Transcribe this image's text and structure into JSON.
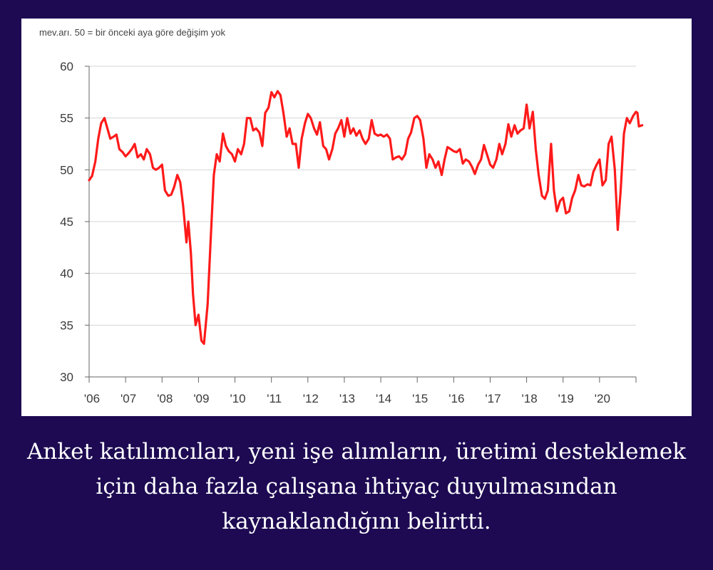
{
  "chart_data": {
    "type": "line",
    "title": "",
    "subtitle": "mev.arı. 50 = bir önceki aya göre değişim yok",
    "xlabel": "",
    "ylabel": "",
    "ylim": [
      30,
      60
    ],
    "yticks": [
      30,
      35,
      40,
      45,
      50,
      55,
      60
    ],
    "xlim": [
      2006.0,
      2021.0
    ],
    "xticks": [
      {
        "label": "'06",
        "x": 2006
      },
      {
        "label": "'07",
        "x": 2007
      },
      {
        "label": "'08",
        "x": 2008
      },
      {
        "label": "'09",
        "x": 2009
      },
      {
        "label": "'10",
        "x": 2010
      },
      {
        "label": "'11",
        "x": 2011
      },
      {
        "label": "'12",
        "x": 2012
      },
      {
        "label": "'13",
        "x": 2013
      },
      {
        "label": "'14",
        "x": 2014
      },
      {
        "label": "'15",
        "x": 2015
      },
      {
        "label": "'16",
        "x": 2016
      },
      {
        "label": "'17",
        "x": 2017
      },
      {
        "label": "'18",
        "x": 2018
      },
      {
        "label": "'19",
        "x": 2019
      },
      {
        "label": "'20",
        "x": 2020
      }
    ],
    "grid": true,
    "color": "#ff1a1a",
    "series": [
      {
        "name": "",
        "points": [
          [
            2006.0,
            49.0
          ],
          [
            2006.08,
            49.4
          ],
          [
            2006.17,
            50.8
          ],
          [
            2006.25,
            53.0
          ],
          [
            2006.33,
            54.5
          ],
          [
            2006.42,
            55.0
          ],
          [
            2006.5,
            54.0
          ],
          [
            2006.58,
            53.0
          ],
          [
            2006.67,
            53.2
          ],
          [
            2006.75,
            53.4
          ],
          [
            2006.83,
            52.0
          ],
          [
            2006.92,
            51.7
          ],
          [
            2007.0,
            51.3
          ],
          [
            2007.08,
            51.6
          ],
          [
            2007.17,
            52.0
          ],
          [
            2007.25,
            52.5
          ],
          [
            2007.33,
            51.2
          ],
          [
            2007.42,
            51.5
          ],
          [
            2007.5,
            51.0
          ],
          [
            2007.58,
            52.0
          ],
          [
            2007.67,
            51.5
          ],
          [
            2007.75,
            50.2
          ],
          [
            2007.83,
            50.0
          ],
          [
            2007.92,
            50.2
          ],
          [
            2008.0,
            50.5
          ],
          [
            2008.08,
            48.0
          ],
          [
            2008.17,
            47.5
          ],
          [
            2008.25,
            47.6
          ],
          [
            2008.33,
            48.3
          ],
          [
            2008.42,
            49.5
          ],
          [
            2008.5,
            48.8
          ],
          [
            2008.58,
            46.5
          ],
          [
            2008.67,
            43.0
          ],
          [
            2008.72,
            45.0
          ],
          [
            2008.79,
            42.0
          ],
          [
            2008.85,
            38.0
          ],
          [
            2008.92,
            35.0
          ],
          [
            2009.0,
            36.0
          ],
          [
            2009.08,
            33.5
          ],
          [
            2009.15,
            33.2
          ],
          [
            2009.25,
            37.0
          ],
          [
            2009.33,
            43.0
          ],
          [
            2009.42,
            49.5
          ],
          [
            2009.5,
            51.5
          ],
          [
            2009.58,
            50.8
          ],
          [
            2009.67,
            53.5
          ],
          [
            2009.75,
            52.3
          ],
          [
            2009.83,
            51.8
          ],
          [
            2009.92,
            51.5
          ],
          [
            2010.0,
            50.8
          ],
          [
            2010.08,
            52.0
          ],
          [
            2010.17,
            51.5
          ],
          [
            2010.25,
            52.5
          ],
          [
            2010.33,
            55.0
          ],
          [
            2010.42,
            55.0
          ],
          [
            2010.5,
            53.8
          ],
          [
            2010.58,
            54.0
          ],
          [
            2010.67,
            53.6
          ],
          [
            2010.75,
            52.3
          ],
          [
            2010.83,
            55.5
          ],
          [
            2010.92,
            56.0
          ],
          [
            2011.0,
            57.5
          ],
          [
            2011.08,
            57.0
          ],
          [
            2011.17,
            57.6
          ],
          [
            2011.25,
            57.2
          ],
          [
            2011.33,
            55.5
          ],
          [
            2011.42,
            53.2
          ],
          [
            2011.5,
            54.0
          ],
          [
            2011.58,
            52.5
          ],
          [
            2011.67,
            52.5
          ],
          [
            2011.75,
            50.2
          ],
          [
            2011.83,
            53.0
          ],
          [
            2011.92,
            54.5
          ],
          [
            2012.0,
            55.4
          ],
          [
            2012.08,
            55.0
          ],
          [
            2012.17,
            54.0
          ],
          [
            2012.25,
            53.4
          ],
          [
            2012.33,
            54.6
          ],
          [
            2012.42,
            52.3
          ],
          [
            2012.5,
            52.0
          ],
          [
            2012.58,
            51.0
          ],
          [
            2012.67,
            52.0
          ],
          [
            2012.75,
            53.5
          ],
          [
            2012.83,
            54.0
          ],
          [
            2012.92,
            54.8
          ],
          [
            2013.0,
            53.2
          ],
          [
            2013.08,
            55.0
          ],
          [
            2013.17,
            53.5
          ],
          [
            2013.25,
            54.0
          ],
          [
            2013.33,
            53.3
          ],
          [
            2013.42,
            53.8
          ],
          [
            2013.5,
            53.0
          ],
          [
            2013.58,
            52.5
          ],
          [
            2013.67,
            53.0
          ],
          [
            2013.75,
            54.8
          ],
          [
            2013.83,
            53.5
          ],
          [
            2013.92,
            53.3
          ],
          [
            2014.0,
            53.4
          ],
          [
            2014.08,
            53.2
          ],
          [
            2014.17,
            53.4
          ],
          [
            2014.25,
            53.0
          ],
          [
            2014.33,
            51.0
          ],
          [
            2014.42,
            51.2
          ],
          [
            2014.5,
            51.3
          ],
          [
            2014.58,
            51.0
          ],
          [
            2014.67,
            51.5
          ],
          [
            2014.75,
            53.0
          ],
          [
            2014.83,
            53.6
          ],
          [
            2014.92,
            55.0
          ],
          [
            2015.0,
            55.2
          ],
          [
            2015.08,
            54.8
          ],
          [
            2015.17,
            53.0
          ],
          [
            2015.25,
            50.2
          ],
          [
            2015.33,
            51.5
          ],
          [
            2015.42,
            51.0
          ],
          [
            2015.5,
            50.2
          ],
          [
            2015.58,
            50.8
          ],
          [
            2015.67,
            49.5
          ],
          [
            2015.75,
            51.0
          ],
          [
            2015.83,
            52.2
          ],
          [
            2015.92,
            52.0
          ],
          [
            2016.0,
            51.8
          ],
          [
            2016.08,
            51.7
          ],
          [
            2016.17,
            52.0
          ],
          [
            2016.25,
            50.6
          ],
          [
            2016.33,
            51.0
          ],
          [
            2016.42,
            50.8
          ],
          [
            2016.5,
            50.3
          ],
          [
            2016.58,
            49.6
          ],
          [
            2016.67,
            50.5
          ],
          [
            2016.75,
            51.0
          ],
          [
            2016.83,
            52.4
          ],
          [
            2016.92,
            51.4
          ],
          [
            2017.0,
            50.5
          ],
          [
            2017.08,
            50.2
          ],
          [
            2017.17,
            51.0
          ],
          [
            2017.25,
            52.5
          ],
          [
            2017.33,
            51.5
          ],
          [
            2017.42,
            52.5
          ],
          [
            2017.5,
            54.4
          ],
          [
            2017.58,
            53.2
          ],
          [
            2017.67,
            54.3
          ],
          [
            2017.75,
            53.5
          ],
          [
            2017.83,
            53.8
          ],
          [
            2017.92,
            54.0
          ],
          [
            2018.0,
            56.3
          ],
          [
            2018.08,
            54.0
          ],
          [
            2018.17,
            55.6
          ],
          [
            2018.25,
            52.0
          ],
          [
            2018.33,
            49.5
          ],
          [
            2018.42,
            47.5
          ],
          [
            2018.5,
            47.2
          ],
          [
            2018.58,
            48.0
          ],
          [
            2018.67,
            52.5
          ],
          [
            2018.75,
            48.0
          ],
          [
            2018.83,
            46.0
          ],
          [
            2018.92,
            47.0
          ],
          [
            2019.0,
            47.3
          ],
          [
            2019.08,
            45.8
          ],
          [
            2019.17,
            46.0
          ],
          [
            2019.25,
            47.3
          ],
          [
            2019.33,
            48.0
          ],
          [
            2019.42,
            49.5
          ],
          [
            2019.5,
            48.5
          ],
          [
            2019.58,
            48.4
          ],
          [
            2019.67,
            48.6
          ],
          [
            2019.75,
            48.5
          ],
          [
            2019.83,
            49.8
          ],
          [
            2019.92,
            50.5
          ],
          [
            2020.0,
            51.0
          ],
          [
            2020.08,
            48.5
          ],
          [
            2020.17,
            49.0
          ],
          [
            2020.25,
            52.5
          ],
          [
            2020.33,
            53.2
          ],
          [
            2020.42,
            50.0
          ],
          [
            2020.5,
            44.2
          ],
          [
            2020.58,
            48.0
          ],
          [
            2020.67,
            53.5
          ],
          [
            2020.75,
            55.0
          ],
          [
            2020.83,
            54.5
          ],
          [
            2020.92,
            55.2
          ],
          [
            2021.0,
            55.6
          ],
          [
            2021.04,
            55.5
          ],
          [
            2021.08,
            54.2
          ],
          [
            2021.17,
            54.3
          ]
        ]
      }
    ]
  },
  "caption": "Anket katılımcıları, yeni işe alımların, üretimi desteklemek için daha fazla çalışana ihtiyaç duyulmasından kaynaklandığını belirtti."
}
